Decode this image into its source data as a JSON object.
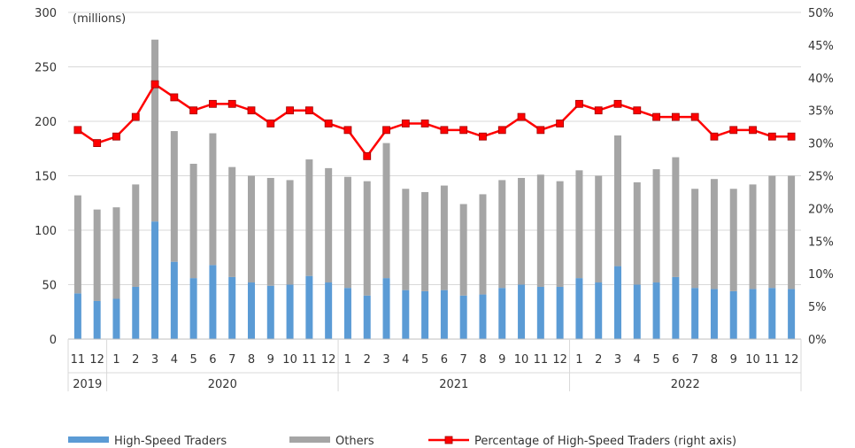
{
  "chart_data": {
    "type": "bar",
    "stacked": true,
    "unit_label": "(millions)",
    "years": [
      {
        "label": "2019",
        "months": 2
      },
      {
        "label": "2020",
        "months": 12
      },
      {
        "label": "2021",
        "months": 12
      },
      {
        "label": "2022",
        "months": 12
      }
    ],
    "categories": [
      "11",
      "12",
      "1",
      "2",
      "3",
      "4",
      "5",
      "6",
      "7",
      "8",
      "9",
      "10",
      "11",
      "12",
      "1",
      "2",
      "3",
      "4",
      "5",
      "6",
      "7",
      "8",
      "9",
      "10",
      "11",
      "12",
      "1",
      "2",
      "3",
      "4",
      "5",
      "6",
      "7",
      "8",
      "9",
      "10",
      "11",
      "12"
    ],
    "series": [
      {
        "name": "High-Speed Traders",
        "color": "#5b9bd5",
        "axis": "left",
        "values": [
          42,
          35,
          37,
          48,
          108,
          71,
          56,
          68,
          57,
          52,
          49,
          50,
          58,
          52,
          47,
          40,
          56,
          45,
          44,
          45,
          40,
          41,
          47,
          50,
          48,
          48,
          56,
          52,
          67,
          50,
          52,
          57,
          47,
          46,
          44,
          46,
          47,
          46
        ]
      },
      {
        "name": "Others",
        "color": "#a5a5a5",
        "axis": "left",
        "values": [
          90,
          84,
          84,
          94,
          167,
          120,
          105,
          121,
          101,
          98,
          99,
          96,
          107,
          105,
          102,
          105,
          124,
          93,
          91,
          96,
          84,
          92,
          99,
          98,
          103,
          97,
          99,
          98,
          120,
          94,
          104,
          110,
          91,
          101,
          94,
          96,
          103,
          104
        ]
      },
      {
        "name": "Percentage of High-Speed Traders (right axis)",
        "color": "#ff0000",
        "axis": "right",
        "type": "line",
        "values": [
          32,
          30,
          31,
          34,
          39,
          37,
          35,
          36,
          36,
          35,
          33,
          35,
          35,
          33,
          32,
          28,
          32,
          33,
          33,
          32,
          32,
          31,
          32,
          34,
          32,
          33,
          36,
          35,
          36,
          35,
          34,
          34,
          34,
          31,
          32,
          32,
          31,
          31
        ]
      }
    ],
    "y_left": {
      "min": 0,
      "max": 300,
      "ticks": [
        "0",
        "50",
        "100",
        "150",
        "200",
        "250",
        "300"
      ]
    },
    "y_right": {
      "min": 0,
      "max": 50,
      "ticks": [
        "0%",
        "5%",
        "10%",
        "15%",
        "20%",
        "25%",
        "30%",
        "35%",
        "40%",
        "45%",
        "50%"
      ]
    },
    "grid": true,
    "legend_position": "bottom"
  }
}
